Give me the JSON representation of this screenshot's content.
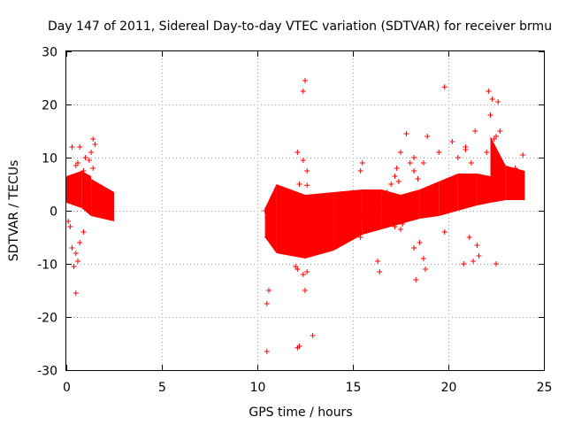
{
  "chart_data": {
    "type": "scatter",
    "title": "Day 147 of 2011, Sidereal Day-to-day VTEC variation (SDTVAR) for receiver brmu",
    "xlabel": "GPS time / hours",
    "ylabel": "SDTVAR / TECUs",
    "xlim": [
      0,
      25
    ],
    "ylim": [
      -30,
      30
    ],
    "xticks": [
      0,
      5,
      10,
      15,
      20,
      25
    ],
    "yticks": [
      -30,
      -20,
      -10,
      0,
      10,
      20,
      30
    ],
    "grid": true,
    "marker": "+",
    "color": "#ff0000",
    "series": [
      {
        "name": "SDTVAR",
        "bands": [
          {
            "x": [
              0.0,
              0.8
            ],
            "low": [
              1.5,
              0.5
            ],
            "high": [
              6.5,
              7.5
            ]
          },
          {
            "x": [
              0.8,
              1.3
            ],
            "low": [
              0.5,
              -1.0
            ],
            "high": [
              7.5,
              6.5
            ]
          },
          {
            "x": [
              1.3,
              2.5
            ],
            "low": [
              -1.0,
              -2.0
            ],
            "high": [
              6.0,
              3.5
            ]
          },
          {
            "x": [
              10.4,
              11.0
            ],
            "low": [
              -5.0,
              -8.0
            ],
            "high": [
              0.5,
              5.0
            ]
          },
          {
            "x": [
              11.0,
              12.5
            ],
            "low": [
              -8.0,
              -9.0
            ],
            "high": [
              5.0,
              3.0
            ]
          },
          {
            "x": [
              12.5,
              14.0
            ],
            "low": [
              -9.0,
              -7.5
            ],
            "high": [
              3.0,
              3.5
            ]
          },
          {
            "x": [
              14.0,
              15.5
            ],
            "low": [
              -7.5,
              -4.5
            ],
            "high": [
              3.5,
              4.0
            ]
          },
          {
            "x": [
              15.5,
              16.5
            ],
            "low": [
              -4.5,
              -3.5
            ],
            "high": [
              4.0,
              4.0
            ]
          },
          {
            "x": [
              16.5,
              17.5
            ],
            "low": [
              -3.5,
              -2.5
            ],
            "high": [
              4.0,
              3.0
            ]
          },
          {
            "x": [
              17.5,
              18.5
            ],
            "low": [
              -2.5,
              -1.5
            ],
            "high": [
              3.0,
              4.0
            ]
          },
          {
            "x": [
              18.5,
              19.5
            ],
            "low": [
              -1.5,
              -1.0
            ],
            "high": [
              4.0,
              5.5
            ]
          },
          {
            "x": [
              19.5,
              20.5
            ],
            "low": [
              -1.0,
              0.0
            ],
            "high": [
              5.5,
              7.0
            ]
          },
          {
            "x": [
              20.5,
              21.5
            ],
            "low": [
              0.0,
              1.0
            ],
            "high": [
              7.0,
              7.0
            ]
          },
          {
            "x": [
              21.5,
              22.2
            ],
            "low": [
              1.0,
              1.5
            ],
            "high": [
              7.0,
              6.5
            ]
          },
          {
            "x": [
              22.2,
              23.0
            ],
            "low": [
              1.5,
              2.0
            ],
            "high": [
              14.0,
              8.5
            ]
          },
          {
            "x": [
              23.0,
              24.0
            ],
            "low": [
              2.0,
              2.0
            ],
            "high": [
              8.5,
              7.5
            ]
          }
        ],
        "points": [
          [
            0.5,
            -15.5
          ],
          [
            0.4,
            -10.5
          ],
          [
            0.6,
            -9.5
          ],
          [
            0.5,
            -8.0
          ],
          [
            0.3,
            -7.0
          ],
          [
            0.7,
            -6.0
          ],
          [
            0.9,
            -4.0
          ],
          [
            0.2,
            -3.0
          ],
          [
            0.1,
            -2.0
          ],
          [
            0.3,
            12.0
          ],
          [
            0.7,
            12.0
          ],
          [
            0.6,
            9.0
          ],
          [
            1.0,
            10.0
          ],
          [
            1.2,
            9.5
          ],
          [
            1.4,
            13.5
          ],
          [
            1.3,
            11.0
          ],
          [
            1.5,
            12.5
          ],
          [
            1.4,
            8.0
          ],
          [
            0.5,
            8.5
          ],
          [
            0.9,
            7.5
          ],
          [
            10.5,
            -26.5
          ],
          [
            10.5,
            -17.5
          ],
          [
            10.6,
            -15.0
          ],
          [
            10.5,
            -5.0
          ],
          [
            10.4,
            0.0
          ],
          [
            11.5,
            -6.0
          ],
          [
            12.0,
            -10.5
          ],
          [
            12.1,
            -11.0
          ],
          [
            12.4,
            -12.0
          ],
          [
            12.6,
            -11.5
          ],
          [
            12.5,
            -15.0
          ],
          [
            12.2,
            -25.5
          ],
          [
            12.1,
            -25.8
          ],
          [
            12.9,
            -23.5
          ],
          [
            12.4,
            22.5
          ],
          [
            12.5,
            24.5
          ],
          [
            12.1,
            11.0
          ],
          [
            12.4,
            9.5
          ],
          [
            12.6,
            7.5
          ],
          [
            12.2,
            5.0
          ],
          [
            12.6,
            4.8
          ],
          [
            15.5,
            9.0
          ],
          [
            15.4,
            7.5
          ],
          [
            15.4,
            -5.0
          ],
          [
            16.3,
            -9.5
          ],
          [
            16.4,
            -11.5
          ],
          [
            17.0,
            5.0
          ],
          [
            17.3,
            8.0
          ],
          [
            17.2,
            6.5
          ],
          [
            17.4,
            5.5
          ],
          [
            17.5,
            -3.5
          ],
          [
            17.2,
            -3.0
          ],
          [
            17.6,
            -2.5
          ],
          [
            17.5,
            11.0
          ],
          [
            17.8,
            14.5
          ],
          [
            18.2,
            10.0
          ],
          [
            18.0,
            9.0
          ],
          [
            18.2,
            7.5
          ],
          [
            18.4,
            6.0
          ],
          [
            18.2,
            -7.0
          ],
          [
            18.3,
            -13.0
          ],
          [
            18.7,
            -9.0
          ],
          [
            18.8,
            -11.0
          ],
          [
            18.5,
            -6.0
          ],
          [
            18.9,
            14.0
          ],
          [
            18.7,
            9.0
          ],
          [
            19.5,
            11.0
          ],
          [
            19.8,
            23.3
          ],
          [
            20.2,
            13.0
          ],
          [
            20.5,
            10.0
          ],
          [
            20.9,
            11.5
          ],
          [
            20.9,
            12.0
          ],
          [
            21.4,
            15.0
          ],
          [
            21.5,
            -6.5
          ],
          [
            21.6,
            -8.5
          ],
          [
            21.1,
            -5.0
          ],
          [
            20.8,
            -10.0
          ],
          [
            21.3,
            -9.5
          ],
          [
            22.1,
            22.5
          ],
          [
            22.3,
            21.0
          ],
          [
            22.2,
            18.0
          ],
          [
            22.0,
            11.0
          ],
          [
            22.4,
            13.5
          ],
          [
            22.6,
            20.5
          ],
          [
            22.7,
            15.0
          ],
          [
            22.5,
            -10.0
          ],
          [
            22.5,
            14.0
          ],
          [
            23.9,
            10.5
          ],
          [
            23.5,
            8.0
          ],
          [
            20.2,
            4.0
          ],
          [
            21.2,
            9.0
          ],
          [
            16.8,
            3.5
          ],
          [
            19.8,
            -4.0
          ],
          [
            19.6,
            1.0
          ],
          [
            15.5,
            -1.0
          ]
        ]
      }
    ]
  }
}
